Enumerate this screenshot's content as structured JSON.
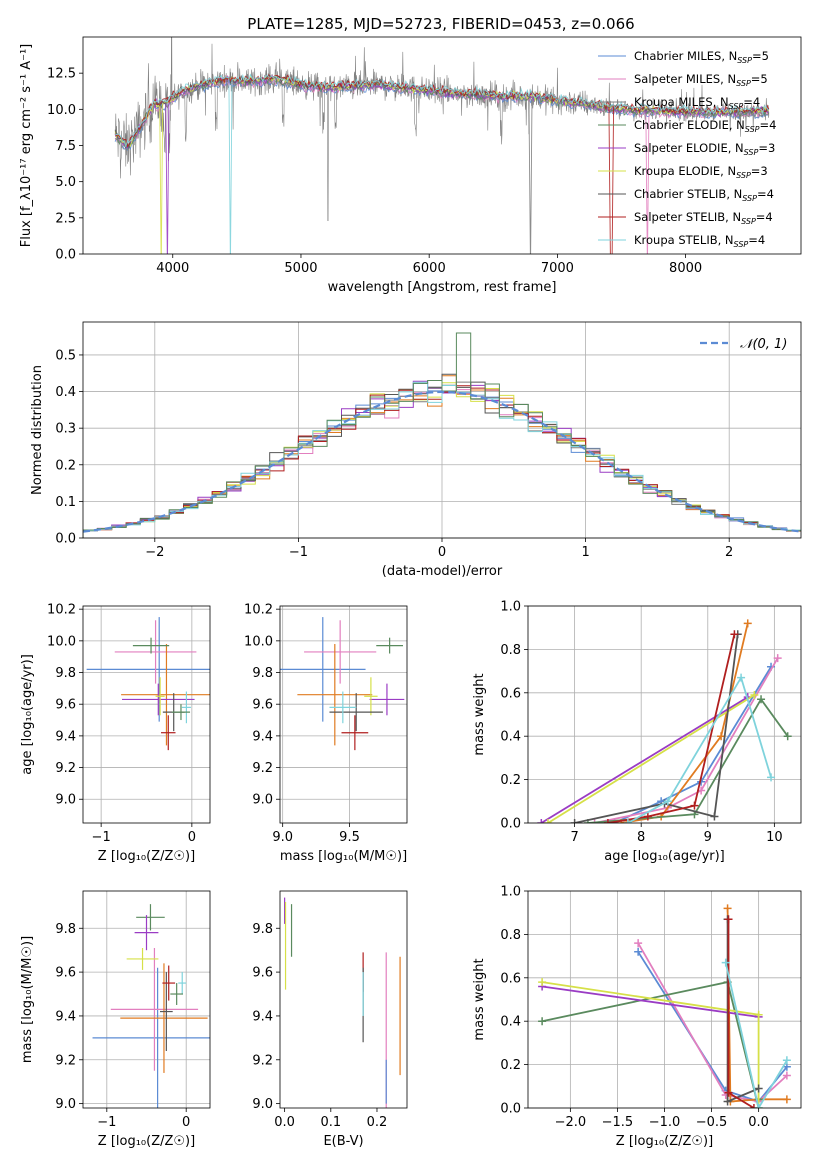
{
  "title": "PLATE=1285, MJD=52723, FIBERID=0453, z=0.066",
  "colors": {
    "Chabrier MILES": "#5b8bd4",
    "Salpeter MILES": "#e27fbf",
    "Kroupa MILES": "#7f7f7f",
    "Chabrier ELODIE": "#e07b21",
    "Salpeter ELODIE": "#9a3cc4",
    "Kroupa ELODIE": "#d6e048",
    "Chabrier STELIB": "#555555",
    "Salpeter STELIB": "#b01f1f",
    "Kroupa STELIB": "#7fd3dc",
    "green": "#5a8a5e",
    "data_gray": "#808080"
  },
  "chart_data": [
    {
      "id": "spectrum",
      "type": "line",
      "xlabel": "wavelength [Angstrom, rest frame]",
      "ylabel": "Flux [f_λ10⁻¹⁷ erg cm⁻² s⁻¹ A⁻¹]",
      "xlim": [
        3300,
        8900
      ],
      "ylim": [
        0,
        15
      ],
      "xticks": [
        "4000",
        "5000",
        "6000",
        "7000",
        "8000"
      ],
      "yticks": [
        "0.0",
        "2.5",
        "5.0",
        "7.5",
        "10.0",
        "12.5"
      ],
      "grid": false,
      "legend_position": "top-right",
      "legend": [
        {
          "base": "Chabrier MILES, N",
          "sub": "SSP",
          "tail": "=5",
          "color": "#5b8bd4"
        },
        {
          "base": "Salpeter MILES, N",
          "sub": "SSP",
          "tail": "=5",
          "color": "#e27fbf"
        },
        {
          "base": "Kroupa MILES, N",
          "sub": "SSP",
          "tail": "=4",
          "color": "#7f7f7f"
        },
        {
          "base": "Chabrier ELODIE, N",
          "sub": "SSP",
          "tail": "=4",
          "color": "#5a8a5e"
        },
        {
          "base": "Salpeter ELODIE, N",
          "sub": "SSP",
          "tail": "=3",
          "color": "#9a3cc4"
        },
        {
          "base": "Kroupa ELODIE, N",
          "sub": "SSP",
          "tail": "=3",
          "color": "#d6e048"
        },
        {
          "base": "Chabrier STELIB, N",
          "sub": "SSP",
          "tail": "=4",
          "color": "#555555"
        },
        {
          "base": "Salpeter STELIB, N",
          "sub": "SSP",
          "tail": "=4",
          "color": "#b01f1f"
        },
        {
          "base": "Kroupa STELIB, N",
          "sub": "SSP",
          "tail": "=4",
          "color": "#7fd3dc"
        }
      ],
      "continuum": [
        [
          3550,
          8.2
        ],
        [
          3650,
          7.4
        ],
        [
          3750,
          8.8
        ],
        [
          3850,
          10.3
        ],
        [
          3950,
          10.4
        ],
        [
          4050,
          11.1
        ],
        [
          4200,
          11.6
        ],
        [
          4400,
          12.0
        ],
        [
          4600,
          11.9
        ],
        [
          4800,
          12.1
        ],
        [
          5000,
          11.7
        ],
        [
          5200,
          11.5
        ],
        [
          5400,
          11.6
        ],
        [
          5600,
          11.7
        ],
        [
          5800,
          11.5
        ],
        [
          6000,
          11.3
        ],
        [
          6200,
          11.1
        ],
        [
          6400,
          11.0
        ],
        [
          6600,
          10.9
        ],
        [
          6800,
          10.9
        ],
        [
          7000,
          10.6
        ],
        [
          7200,
          10.4
        ],
        [
          7400,
          10.1
        ],
        [
          7600,
          9.9
        ],
        [
          7800,
          9.9
        ],
        [
          8000,
          9.8
        ],
        [
          8200,
          9.8
        ],
        [
          8400,
          9.8
        ],
        [
          8650,
          9.9
        ]
      ]
    },
    {
      "id": "residual_histogram",
      "type": "bar",
      "xlabel": "(data-model)/error",
      "ylabel": "Normed distribution",
      "xlim": [
        -2.5,
        2.5
      ],
      "ylim": [
        0,
        0.59
      ],
      "xticks": [
        "−2",
        "−1",
        "0",
        "1",
        "2"
      ],
      "yticks": [
        "0.0",
        "0.1",
        "0.2",
        "0.3",
        "0.4",
        "0.5"
      ],
      "grid": true,
      "legend_position": "top-right",
      "legend_label": "𝒩(0, 1)",
      "bin_width": 0.1,
      "bin_start": -2.5,
      "peak_bin_value": 0.56
    },
    {
      "id": "age_vs_Z",
      "type": "scatter",
      "xlabel": "Z [log₁₀(Z/Z☉)]",
      "ylabel": "age  [log₁₀(age/yr)]",
      "xlim": [
        -1.2,
        0.2
      ],
      "ylim": [
        8.85,
        10.22
      ],
      "xticks": [
        "−1",
        "0"
      ],
      "yticks": [
        "9.0",
        "9.2",
        "9.4",
        "9.6",
        "9.8",
        "10.0",
        "10.2"
      ],
      "grid": true,
      "points": [
        {
          "x": -0.36,
          "y": 9.82,
          "xerr": 0.8,
          "yerr": 0.33,
          "color": "#5b8bd4"
        },
        {
          "x": -0.4,
          "y": 9.93,
          "xerr": 0.45,
          "yerr": 0.2,
          "color": "#e27fbf"
        },
        {
          "x": -0.28,
          "y": 9.66,
          "xerr": 0.5,
          "yerr": 0.32,
          "color": "#e07b21"
        },
        {
          "x": -0.45,
          "y": 9.97,
          "xerr": 0.2,
          "yerr": 0.05,
          "color": "#5a8a5e"
        },
        {
          "x": -0.37,
          "y": 9.63,
          "xerr": 0.4,
          "yerr": 0.1,
          "color": "#9a3cc4"
        },
        {
          "x": -0.35,
          "y": 9.65,
          "xerr": 0.05,
          "yerr": 0.12,
          "color": "#d6e048"
        },
        {
          "x": -0.2,
          "y": 9.55,
          "xerr": 0.12,
          "yerr": 0.12,
          "color": "#555555"
        },
        {
          "x": -0.26,
          "y": 9.42,
          "xerr": 0.08,
          "yerr": 0.11,
          "color": "#b01f1f"
        },
        {
          "x": -0.06,
          "y": 9.58,
          "xerr": 0.05,
          "yerr": 0.1,
          "color": "#7fd3dc"
        },
        {
          "x": -0.12,
          "y": 9.55,
          "xerr": 0.1,
          "yerr": 0.05,
          "color": "#5a8a5e"
        }
      ]
    },
    {
      "id": "age_vs_mass",
      "type": "scatter",
      "xlabel": "mass [log₁₀(M/M☉)]",
      "ylabel": "",
      "xlim": [
        8.98,
        9.93
      ],
      "ylim": [
        8.85,
        10.22
      ],
      "xticks": [
        "9.0",
        "9.5"
      ],
      "yticks": [
        "9.0",
        "9.2",
        "9.4",
        "9.6",
        "9.8",
        "10.0",
        "10.2"
      ],
      "grid": true,
      "points": [
        {
          "x": 9.3,
          "y": 9.82,
          "xerr": 0.32,
          "yerr": 0.33,
          "color": "#5b8bd4"
        },
        {
          "x": 9.43,
          "y": 9.93,
          "xerr": 0.27,
          "yerr": 0.2,
          "color": "#e27fbf"
        },
        {
          "x": 9.39,
          "y": 9.66,
          "xerr": 0.28,
          "yerr": 0.32,
          "color": "#e07b21"
        },
        {
          "x": 9.8,
          "y": 9.97,
          "xerr": 0.1,
          "yerr": 0.05,
          "color": "#5a8a5e"
        },
        {
          "x": 9.78,
          "y": 9.63,
          "xerr": 0.13,
          "yerr": 0.1,
          "color": "#9a3cc4"
        },
        {
          "x": 9.66,
          "y": 9.65,
          "xerr": 0.05,
          "yerr": 0.12,
          "color": "#d6e048"
        },
        {
          "x": 9.55,
          "y": 9.55,
          "xerr": 0.2,
          "yerr": 0.12,
          "color": "#555555"
        },
        {
          "x": 9.54,
          "y": 9.42,
          "xerr": 0.1,
          "yerr": 0.11,
          "color": "#b01f1f"
        },
        {
          "x": 9.45,
          "y": 9.58,
          "xerr": 0.1,
          "yerr": 0.1,
          "color": "#7fd3dc"
        }
      ]
    },
    {
      "id": "mass_weight_vs_age",
      "type": "line",
      "xlabel": "age  [log₁₀(age/yr)]",
      "ylabel": "mass weight",
      "xlim": [
        6.3,
        10.4
      ],
      "ylim": [
        0,
        1.0
      ],
      "xticks": [
        "7",
        "8",
        "9",
        "10"
      ],
      "yticks": [
        "0.0",
        "0.2",
        "0.4",
        "0.6",
        "0.8",
        "1.0"
      ],
      "grid": true,
      "series": [
        {
          "color": "#5b8bd4",
          "x": [
            7.6,
            8.3,
            8.9,
            9.95
          ],
          "y": [
            0.0,
            0.1,
            0.19,
            0.72
          ]
        },
        {
          "color": "#e27fbf",
          "x": [
            7.3,
            8.4,
            8.9,
            10.05
          ],
          "y": [
            0.0,
            0.07,
            0.15,
            0.76
          ]
        },
        {
          "color": "#e07b21",
          "x": [
            7.7,
            8.3,
            9.2,
            9.6
          ],
          "y": [
            0.0,
            0.03,
            0.4,
            0.92
          ]
        },
        {
          "color": "#5a8a5e",
          "x": [
            7.2,
            8.8,
            9.8,
            10.2
          ],
          "y": [
            0.0,
            0.04,
            0.57,
            0.4
          ]
        },
        {
          "color": "#9a3cc4",
          "x": [
            6.5,
            9.6
          ],
          "y": [
            0.0,
            0.58
          ]
        },
        {
          "color": "#d6e048",
          "x": [
            6.6,
            9.7
          ],
          "y": [
            0.0,
            0.59
          ]
        },
        {
          "color": "#555555",
          "x": [
            7.0,
            8.35,
            9.1,
            9.45
          ],
          "y": [
            0.0,
            0.09,
            0.03,
            0.87
          ]
        },
        {
          "color": "#b01f1f",
          "x": [
            7.5,
            8.1,
            8.8,
            9.4
          ],
          "y": [
            0.0,
            0.03,
            0.08,
            0.87
          ]
        },
        {
          "color": "#7fd3dc",
          "x": [
            7.8,
            8.4,
            9.5,
            9.95
          ],
          "y": [
            0.0,
            0.1,
            0.67,
            0.21
          ]
        }
      ]
    },
    {
      "id": "mass_vs_Z",
      "type": "scatter",
      "xlabel": "Z [log₁₀(Z/Z☉)]",
      "ylabel": "mass [log₁₀(M/M☉)]",
      "xlim": [
        -1.3,
        0.3
      ],
      "ylim": [
        8.98,
        9.97
      ],
      "xticks": [
        "−1",
        "0"
      ],
      "yticks": [
        "9.0",
        "9.2",
        "9.4",
        "9.6",
        "9.8"
      ],
      "grid": true,
      "points": [
        {
          "x": -0.36,
          "y": 9.3,
          "xerr": 0.82,
          "yerr": 0.32,
          "color": "#5b8bd4"
        },
        {
          "x": -0.4,
          "y": 9.43,
          "xerr": 0.55,
          "yerr": 0.28,
          "color": "#e27fbf"
        },
        {
          "x": -0.28,
          "y": 9.39,
          "xerr": 0.55,
          "yerr": 0.25,
          "color": "#e07b21"
        },
        {
          "x": -0.45,
          "y": 9.85,
          "xerr": 0.18,
          "yerr": 0.06,
          "color": "#5a8a5e"
        },
        {
          "x": -0.5,
          "y": 9.78,
          "xerr": 0.15,
          "yerr": 0.08,
          "color": "#9a3cc4"
        },
        {
          "x": -0.55,
          "y": 9.66,
          "xerr": 0.2,
          "yerr": 0.05,
          "color": "#d6e048"
        },
        {
          "x": -0.25,
          "y": 9.42,
          "xerr": 0.08,
          "yerr": 0.18,
          "color": "#555555"
        },
        {
          "x": -0.22,
          "y": 9.55,
          "xerr": 0.08,
          "yerr": 0.08,
          "color": "#b01f1f"
        },
        {
          "x": -0.05,
          "y": 9.55,
          "xerr": 0.05,
          "yerr": 0.05,
          "color": "#7fd3dc"
        },
        {
          "x": -0.12,
          "y": 9.5,
          "xerr": 0.08,
          "yerr": 0.05,
          "color": "#5a8a5e"
        }
      ]
    },
    {
      "id": "mass_vs_EBV",
      "type": "scatter",
      "xlabel": "E(B-V)",
      "ylabel": "",
      "xlim": [
        -0.01,
        0.265
      ],
      "ylim": [
        8.98,
        9.97
      ],
      "xticks": [
        "0.0",
        "0.1",
        "0.2"
      ],
      "yticks": [
        "9.0",
        "9.2",
        "9.4",
        "9.6",
        "9.8"
      ],
      "grid": false,
      "points": [
        {
          "x": 0.0,
          "y": 9.88,
          "yerr": 0.06,
          "color": "#9a3cc4"
        },
        {
          "x": 0.002,
          "y": 9.72,
          "yerr": 0.2,
          "color": "#d6e048"
        },
        {
          "x": 0.015,
          "y": 9.79,
          "yerr": 0.12,
          "color": "#5a8a5e"
        },
        {
          "x": 0.17,
          "y": 9.6,
          "yerr": 0.09,
          "color": "#b01f1f"
        },
        {
          "x": 0.17,
          "y": 9.45,
          "yerr": 0.17,
          "color": "#555555"
        },
        {
          "x": 0.17,
          "y": 9.5,
          "yerr": 0.1,
          "color": "#7fd3dc"
        },
        {
          "x": 0.22,
          "y": 9.33,
          "yerr": 0.36,
          "color": "#e27fbf"
        },
        {
          "x": 0.22,
          "y": 9.1,
          "yerr": 0.1,
          "color": "#5b8bd4"
        },
        {
          "x": 0.25,
          "y": 9.4,
          "yerr": 0.27,
          "color": "#e07b21"
        }
      ]
    },
    {
      "id": "mass_weight_vs_Z",
      "type": "line",
      "xlabel": "Z [log₁₀(Z/Z☉)]",
      "ylabel": "mass weight",
      "xlim": [
        -2.45,
        0.45
      ],
      "ylim": [
        0,
        1.0
      ],
      "xticks": [
        "−2.0",
        "−1.5",
        "−1.0",
        "−0.5",
        "0.0"
      ],
      "yticks": [
        "0.0",
        "0.2",
        "0.4",
        "0.6",
        "0.8",
        "1.0"
      ],
      "grid": true,
      "series": [
        {
          "color": "#5b8bd4",
          "x": [
            -1.28,
            -0.35,
            0.0,
            0.3
          ],
          "y": [
            0.72,
            0.08,
            0.03,
            0.19
          ]
        },
        {
          "color": "#e27fbf",
          "x": [
            -1.28,
            -0.35,
            0.0,
            0.3
          ],
          "y": [
            0.76,
            0.06,
            0.03,
            0.15
          ]
        },
        {
          "color": "#e07b21",
          "x": [
            -0.33,
            -0.3,
            0.0,
            0.3
          ],
          "y": [
            0.92,
            0.03,
            0.04,
            0.04
          ]
        },
        {
          "color": "#5a8a5e",
          "x": [
            -2.3,
            -0.33,
            0.0,
            0.0
          ],
          "y": [
            0.4,
            0.58,
            0.0,
            0.04
          ]
        },
        {
          "color": "#9a3cc4",
          "x": [
            -2.3,
            0.0
          ],
          "y": [
            0.56,
            0.42
          ]
        },
        {
          "color": "#d6e048",
          "x": [
            -2.3,
            0.0,
            0.0
          ],
          "y": [
            0.58,
            0.43,
            0.0
          ]
        },
        {
          "color": "#555555",
          "x": [
            -0.33,
            -0.33,
            0.0
          ],
          "y": [
            0.87,
            0.03,
            0.09
          ]
        },
        {
          "color": "#b01f1f",
          "x": [
            -0.32,
            -0.32,
            -0.05
          ],
          "y": [
            0.87,
            0.07,
            0.0
          ]
        },
        {
          "color": "#7fd3dc",
          "x": [
            -0.35,
            0.0,
            0.3
          ],
          "y": [
            0.67,
            0.0,
            0.22
          ]
        }
      ]
    }
  ]
}
